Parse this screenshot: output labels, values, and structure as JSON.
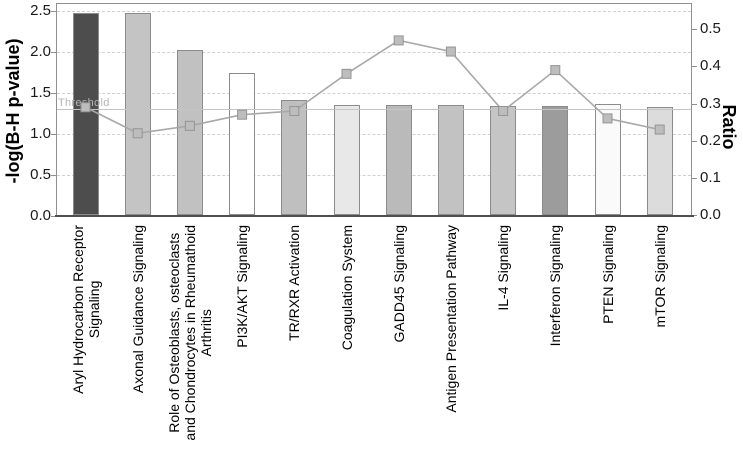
{
  "figure": {
    "background": "#ffffff",
    "threshold_label": "Threshold"
  },
  "chart_data": {
    "type": "bar+line",
    "title": "",
    "categories": [
      "Aryl Hydrocarbon Receptor\nSignaling",
      "Axonal Guidance Signaling",
      "Role of Osteoblasts, osteoclasts\nand Chondrocytes in Rheumathoid\nArthritis",
      "PI3K/AKT Signaling",
      "TR/RXR Activation",
      "Coagulation System",
      "GADD45 Signaling",
      "Antigen Presentation Pathway",
      "IL-4 Signaling",
      "Interferon Signaling",
      "PTEN Signaling",
      "mTOR Signaling"
    ],
    "series": [
      {
        "name": "-log(B-H p-value)",
        "type": "bar",
        "axis": "left",
        "values": [
          2.48,
          2.47,
          2.03,
          1.74,
          1.41,
          1.35,
          1.35,
          1.35,
          1.34,
          1.34,
          1.36,
          1.33
        ],
        "bar_colors": [
          "#4d4d4d",
          "#c4c4c4",
          "#c1c1c1",
          "#ffffff",
          "#bfbfbf",
          "#e8e8e8",
          "#bababa",
          "#c2c2c2",
          "#c5c5c5",
          "#9c9c9c",
          "#fafafa",
          "#dcdcdc"
        ],
        "bar_border_color": "#8c8c8c"
      },
      {
        "name": "Ratio",
        "type": "line",
        "axis": "right",
        "marker": "square",
        "line_color": "#a8a8a8",
        "marker_fill": "#bdbdbd",
        "marker_edge": "#949494",
        "values": [
          0.29,
          0.22,
          0.24,
          0.27,
          0.28,
          0.38,
          0.47,
          0.44,
          0.28,
          0.39,
          0.26,
          0.23
        ]
      }
    ],
    "left_axis": {
      "label": "-log(B-H p-value)",
      "ticks": [
        0.0,
        0.5,
        1.0,
        1.5,
        2.0,
        2.5
      ],
      "range": [
        0,
        2.6
      ]
    },
    "right_axis": {
      "label": "Ratio",
      "ticks": [
        0.0,
        0.1,
        0.2,
        0.3,
        0.4,
        0.5
      ],
      "range": [
        0,
        0.57
      ]
    },
    "threshold": {
      "value": 1.3,
      "label": "Threshold",
      "axis": "left",
      "color": "#c4c4c4"
    },
    "grid": {
      "horizontal": "dashed",
      "at": "left-axis-ticks",
      "color": "#d0d0d0"
    },
    "legend": "none"
  }
}
